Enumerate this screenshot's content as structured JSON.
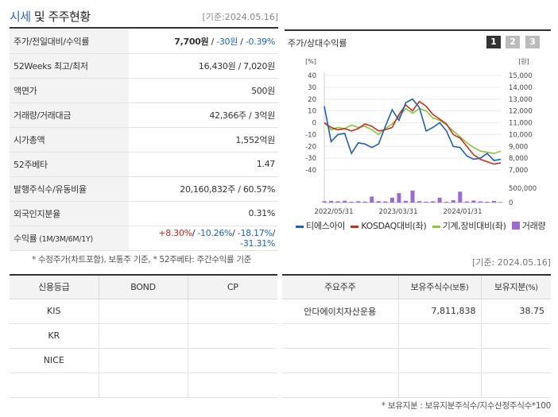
{
  "header": {
    "title_accent": "시세",
    "title_rest": " 및 주주현황",
    "as_of": "[기준:2024.05.16]"
  },
  "info_rows": {
    "price": {
      "label": "주가/전일대비/수익률",
      "price": "7,700원",
      "sep1": " / ",
      "change": "-30원",
      "sep2": " / ",
      "rate": "-0.39%"
    },
    "week52": {
      "label": "52Weeks 최고/최저",
      "value": "16,430원 / 7,020원"
    },
    "par": {
      "label": "액면가",
      "value": "500원"
    },
    "volume": {
      "label": "거래량/거래대금",
      "value": "42,366주 / 3억원"
    },
    "mcap": {
      "label": "시가총액",
      "value": "1,552억원"
    },
    "beta": {
      "label": "52주베타",
      "value": "1.47"
    },
    "shares": {
      "label": "발행주식수/유동비율",
      "value": "20,160,832주 / 60.57%"
    },
    "foreign": {
      "label": "외국인지분율",
      "value": "0.31%"
    },
    "returns": {
      "label": "수익률",
      "label_sub": " (1M/3M/6M/1Y)",
      "r1": "+8.30%",
      "r2": "-10.26%",
      "r3": "-18.17%",
      "r4": "-31.31%",
      "sep": "/ "
    }
  },
  "footnote1": "* 수정주가(차트포함), 보통주 기준, * 52주베타: 주간수익률 기준",
  "chart_panel": {
    "title": "주가/상대수익률",
    "buttons": [
      "1",
      "2",
      "3"
    ],
    "active_button": "1"
  },
  "chart_data": {
    "type": "line",
    "left_unit": "[%]",
    "right_unit": "[원]",
    "left_ticks": [
      "40",
      "30",
      "20",
      "10",
      "0",
      "-10",
      "-20",
      "-30",
      "-40"
    ],
    "right_ticks": [
      "15,000",
      "14,000",
      "13,000",
      "12,000",
      "11,000",
      "10,000",
      "9,000",
      "8,000",
      "7,000"
    ],
    "volume_ticks": [
      "500,000",
      "0"
    ],
    "x_labels": [
      "2022/05/31",
      "2023/03/31",
      "2024/01/31"
    ],
    "left_range": [
      -40,
      40
    ],
    "right_range": [
      7000,
      15000
    ],
    "volume_range": [
      0,
      500000
    ],
    "series": [
      {
        "name": "티에스아이",
        "color": "#1f5fc0",
        "axis": "right",
        "values": [
          12400,
          9400,
          10000,
          10100,
          8400,
          9300,
          9200,
          8900,
          9200,
          10700,
          12100,
          11200,
          12700,
          13000,
          12300,
          10300,
          10600,
          11000,
          10300,
          9000,
          8900,
          8200,
          7900,
          8000,
          8400,
          7800,
          7900
        ]
      },
      {
        "name": "KOSDAQ대비(좌)",
        "color": "#c8301e",
        "axis": "left",
        "values": [
          0,
          -4,
          -6,
          -5,
          -7,
          -5,
          -1,
          -3,
          -7,
          -6,
          -4,
          7,
          15,
          10,
          18,
          14,
          7,
          3,
          -1,
          -10,
          -13,
          -20,
          -27,
          -31,
          -33,
          -35,
          -34
        ]
      },
      {
        "name": "기계,장비대비(좌)",
        "color": "#8cc43c",
        "axis": "left",
        "values": [
          0,
          -6,
          -4,
          -5,
          -2,
          -4,
          -3,
          -6,
          -10,
          -5,
          -1,
          5,
          12,
          8,
          12,
          10,
          4,
          2,
          -2,
          -7,
          -12,
          -17,
          -21,
          -24,
          -25,
          -26,
          -24
        ]
      },
      {
        "name": "거래량",
        "color": "#9c6ad6",
        "axis": "volume",
        "values": [
          48000,
          60000,
          42000,
          62000,
          28000,
          45000,
          35000,
          210000,
          50000,
          40000,
          170000,
          330000,
          60000,
          420000,
          50000,
          30000,
          45000,
          170000,
          30000,
          80000,
          380000,
          40000,
          70000,
          40000,
          30000,
          58000,
          20000
        ]
      }
    ]
  },
  "as_of2": "[기준: 2024.05.16]",
  "credit": {
    "headers": [
      "신용등급",
      "BOND",
      "CP"
    ],
    "rows": [
      [
        "KIS",
        "",
        ""
      ],
      [
        "KR",
        "",
        ""
      ],
      [
        "NICE",
        "",
        ""
      ],
      [
        "",
        "",
        ""
      ]
    ]
  },
  "holders": {
    "headers": [
      "주요주주",
      "보유주식수",
      "(보통)",
      "보유지분",
      "(%)"
    ],
    "rows": [
      [
        "안다에이치자산운용",
        "7,811,838",
        "38.75"
      ],
      [
        "",
        "",
        ""
      ],
      [
        "",
        "",
        ""
      ],
      [
        "",
        "",
        ""
      ]
    ]
  },
  "footnote2": "* 보유지분 : 보유지분주식수/지수산정주식수*100"
}
